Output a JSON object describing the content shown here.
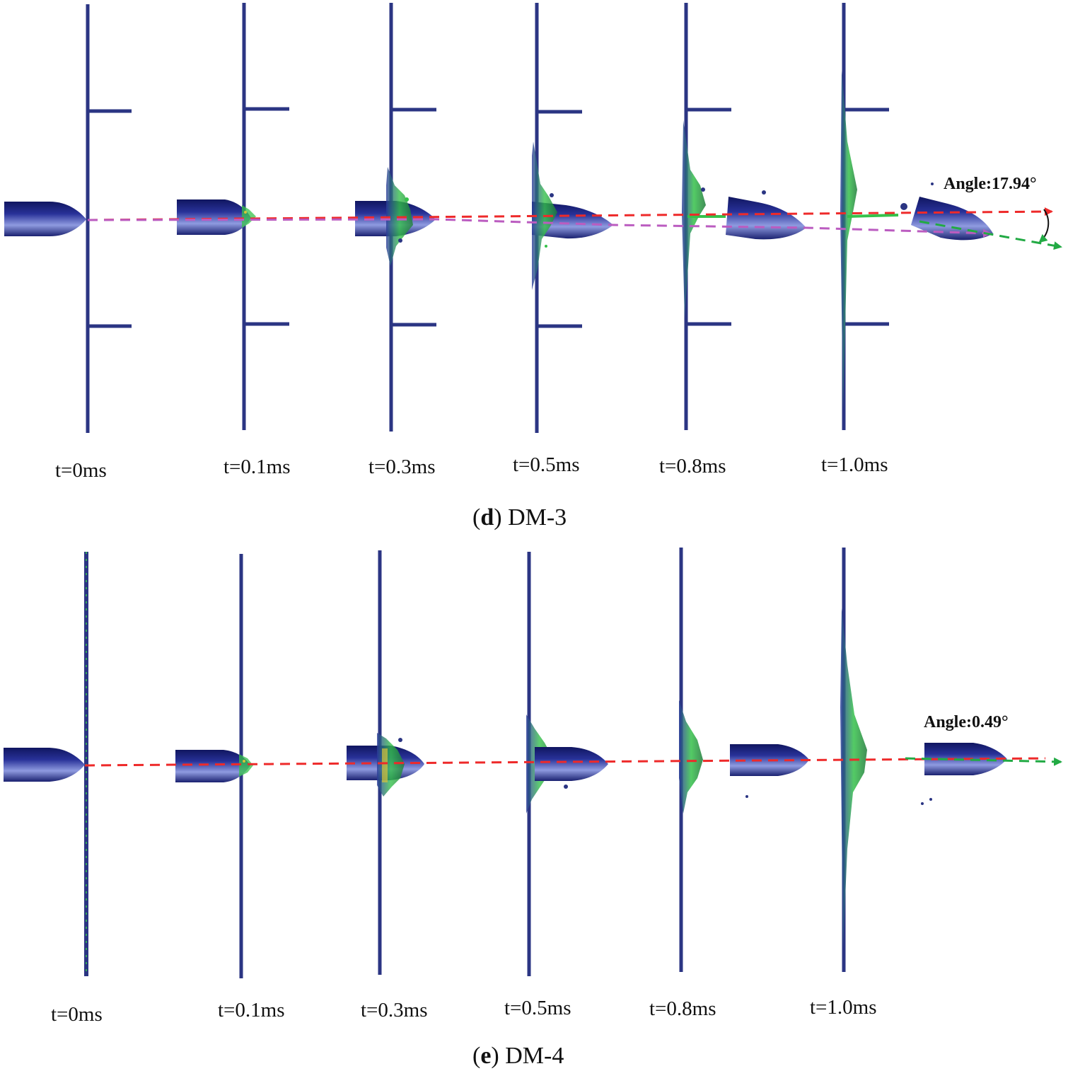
{
  "panels": [
    {
      "id": "d",
      "letter": "d",
      "name": "DM-3",
      "angle_label": "Angle:17.94°",
      "frames": [
        "t=0ms",
        "t=0.1ms",
        "t=0.3ms",
        "t=0.5ms",
        "t=0.8ms",
        "t=1.0ms"
      ]
    },
    {
      "id": "e",
      "letter": "e",
      "name": "DM-4",
      "angle_label": "Angle:0.49°",
      "frames": [
        "t=0ms",
        "t=0.1ms",
        "t=0.3ms",
        "t=0.5ms",
        "t=0.8ms",
        "t=1.0ms"
      ]
    }
  ],
  "colors": {
    "plate": "#2b3583",
    "projectile_dark": "#1a2170",
    "projectile_light": "#8f9be0",
    "damage_green": "#35c24a",
    "damage_yellow": "#d6c33a",
    "initial_trajectory": "#ee2a2a",
    "deflected_trajectory": "#bb5cc0",
    "exit_direction": "#22aa44"
  }
}
